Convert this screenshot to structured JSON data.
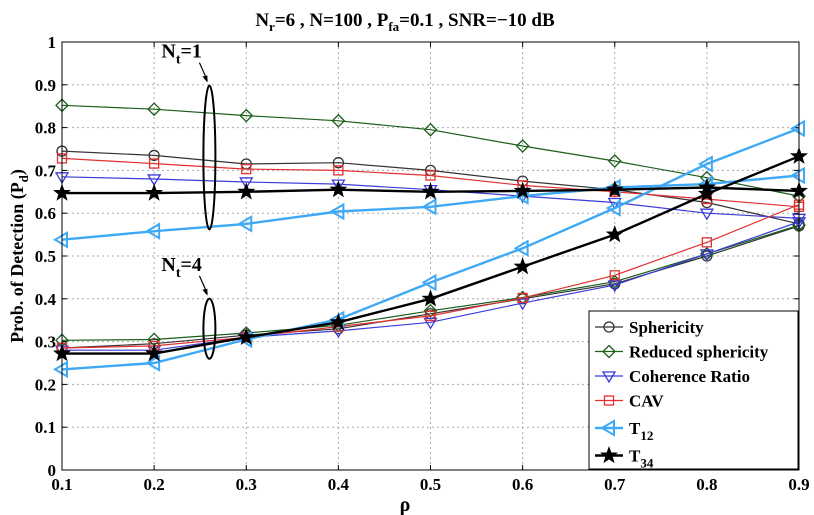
{
  "chart_data": {
    "type": "line",
    "title": {
      "n_r": "6",
      "n": "100",
      "p_fa": "0.1",
      "snr": "−10 dB"
    },
    "xlabel": "ρ",
    "ylabel": {
      "main": "Prob. of Detection (P",
      "sub": "d",
      "close": ")"
    },
    "x": [
      0.1,
      0.2,
      0.3,
      0.4,
      0.5,
      0.6,
      0.7,
      0.8,
      0.9
    ],
    "xlim": [
      0.1,
      0.9
    ],
    "ylim": [
      0,
      1
    ],
    "xticks": [
      "0.1",
      "0.2",
      "0.3",
      "0.4",
      "0.5",
      "0.6",
      "0.7",
      "0.8",
      "0.9"
    ],
    "yticks": [
      "0",
      "0.1",
      "0.2",
      "0.3",
      "0.4",
      "0.5",
      "0.6",
      "0.7",
      "0.8",
      "0.9",
      "1"
    ],
    "grid": true,
    "legend_position": "bottom-right",
    "annotations": [
      {
        "label": "N",
        "sub": "t",
        "eq": "=1",
        "x": 0.26,
        "y": 0.73
      },
      {
        "label": "N",
        "sub": "t",
        "eq": "=4",
        "x": 0.26,
        "y": 0.33
      }
    ],
    "series": [
      {
        "name": "Sphericity",
        "sub": "",
        "color": "#333333",
        "marker": "circle",
        "groups": [
          [
            0.745,
            0.735,
            0.715,
            0.718,
            0.7,
            0.675,
            0.655,
            0.625,
            0.575
          ],
          [
            0.285,
            0.295,
            0.315,
            0.33,
            0.365,
            0.4,
            0.435,
            0.5,
            0.57
          ]
        ]
      },
      {
        "name": "Reduced sphericity",
        "sub": "",
        "color": "#1a5e1a",
        "marker": "diamond",
        "groups": [
          [
            0.852,
            0.843,
            0.828,
            0.816,
            0.795,
            0.757,
            0.722,
            0.683,
            0.64
          ],
          [
            0.303,
            0.305,
            0.32,
            0.338,
            0.372,
            0.403,
            0.44,
            0.505,
            0.572
          ]
        ]
      },
      {
        "name": "Coherence Ratio",
        "sub": "",
        "color": "#3b3bd9",
        "marker": "triangle-down",
        "groups": [
          [
            0.685,
            0.68,
            0.673,
            0.668,
            0.655,
            0.64,
            0.625,
            0.6,
            0.588
          ],
          [
            0.28,
            0.28,
            0.31,
            0.325,
            0.345,
            0.39,
            0.432,
            0.505,
            0.58
          ]
        ]
      },
      {
        "name": "CAV",
        "sub": "",
        "color": "#e23030",
        "marker": "square",
        "groups": [
          [
            0.728,
            0.716,
            0.703,
            0.7,
            0.688,
            0.665,
            0.65,
            0.633,
            0.615
          ],
          [
            0.285,
            0.29,
            0.31,
            0.335,
            0.36,
            0.402,
            0.455,
            0.532,
            0.62
          ]
        ]
      },
      {
        "name": "T",
        "sub": "12",
        "color": "#3fa9f5",
        "marker": "triangle-left",
        "groups": [
          [
            0.538,
            0.558,
            0.575,
            0.604,
            0.615,
            0.64,
            0.66,
            0.668,
            0.688
          ],
          [
            0.235,
            0.25,
            0.305,
            0.352,
            0.438,
            0.518,
            0.612,
            0.715,
            0.798
          ]
        ]
      },
      {
        "name": "T",
        "sub": "34",
        "color": "#000000",
        "marker": "star",
        "groups": [
          [
            0.647,
            0.647,
            0.65,
            0.655,
            0.65,
            0.652,
            0.655,
            0.66,
            0.652
          ],
          [
            0.272,
            0.272,
            0.31,
            0.345,
            0.4,
            0.475,
            0.55,
            0.645,
            0.733
          ]
        ]
      }
    ]
  }
}
